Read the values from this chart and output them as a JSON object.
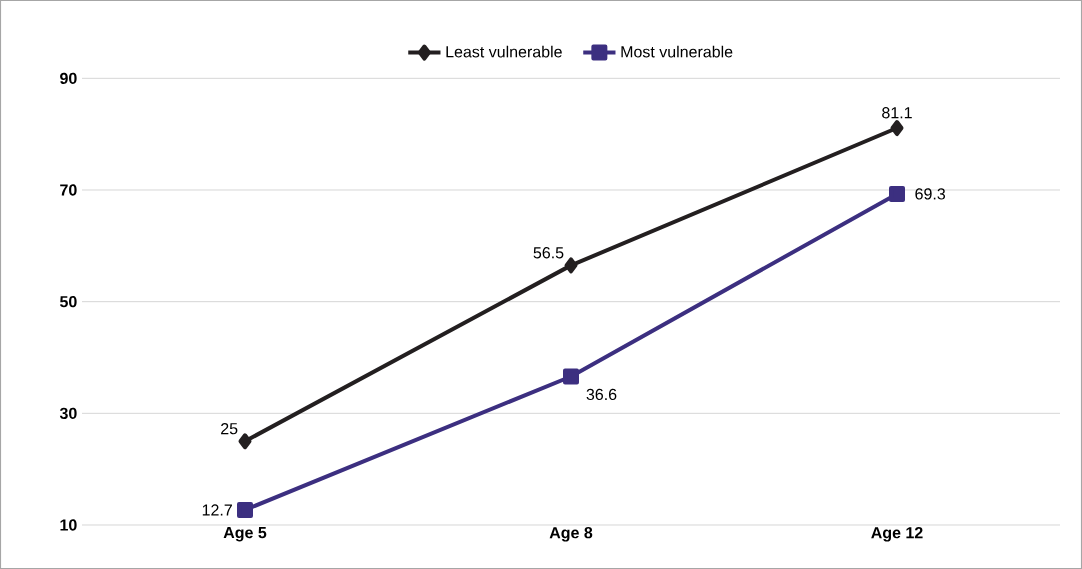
{
  "chart_data": {
    "type": "line",
    "categories": [
      "Age 5",
      "Age 8",
      "Age 12"
    ],
    "series": [
      {
        "name": "Least vulnerable",
        "color": "#231f20",
        "marker": "diamond",
        "values": [
          25,
          56.5,
          81.1
        ]
      },
      {
        "name": "Most vulnerable",
        "color": "#3c2f80",
        "marker": "square",
        "values": [
          12.7,
          36.6,
          69.3
        ]
      }
    ],
    "ylim": [
      10,
      90
    ],
    "yticks": [
      10,
      30,
      50,
      70,
      90
    ],
    "grid": "y",
    "legend": "top",
    "data_labels": true,
    "line_style": "solid"
  }
}
